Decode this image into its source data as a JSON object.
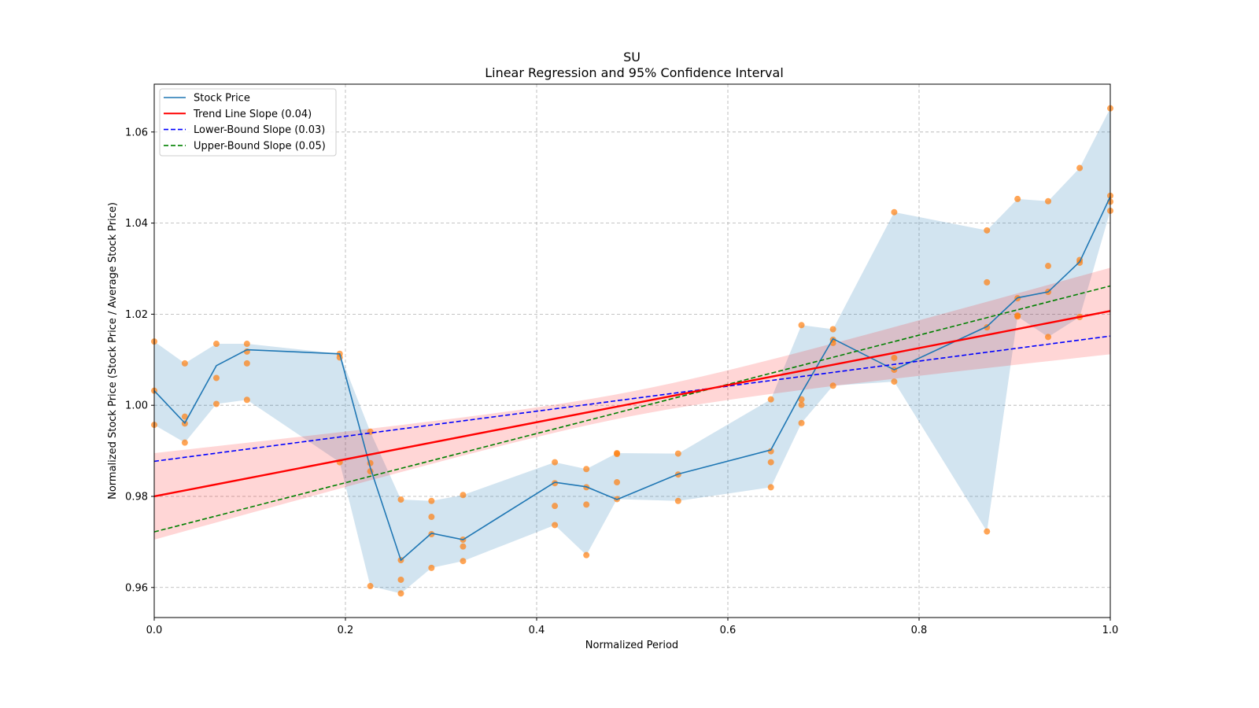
{
  "chart_data": {
    "type": "line",
    "title": "SU",
    "subtitle": "Linear Regression and 95% Confidence Interval",
    "xlabel": "Normalized Period",
    "ylabel": "Normalized Stock Price (Stock Price / Average Stock Price)",
    "xlim": [
      0.0,
      1.0
    ],
    "ylim": [
      0.9534,
      1.0705
    ],
    "xticks": [
      "0.0",
      "0.2",
      "0.4",
      "0.6",
      "0.8",
      "1.0"
    ],
    "yticks": [
      "0.96",
      "0.98",
      "1.00",
      "1.02",
      "1.04",
      "1.06"
    ],
    "grid": true,
    "legend_position": "top-left",
    "legend": [
      {
        "label": "Stock Price",
        "color": "#1f77b4",
        "style": "solid"
      },
      {
        "label": "Trend Line Slope (0.04)",
        "color": "#ff0000",
        "style": "solid"
      },
      {
        "label": "Lower-Bound Slope (0.03)",
        "color": "#0000ff",
        "style": "dashed"
      },
      {
        "label": "Upper-Bound Slope (0.05)",
        "color": "#008000",
        "style": "dashed"
      }
    ],
    "stock_price": {
      "x": [
        0,
        0.032,
        0.065,
        0.097,
        0.194,
        0.226,
        0.258,
        0.29,
        0.323,
        0.419,
        0.452,
        0.484,
        0.548,
        0.645,
        0.677,
        0.71,
        0.774,
        0.871,
        0.903,
        0.935,
        0.968,
        1.0
      ],
      "y": [
        1.0032,
        0.9961,
        1.0087,
        1.0122,
        1.0113,
        0.9863,
        0.966,
        0.9719,
        0.9705,
        0.9831,
        0.9821,
        0.9793,
        0.9849,
        0.9902,
        1.0027,
        1.0146,
        1.0078,
        1.0173,
        1.0236,
        1.0249,
        1.0315,
        1.0458
      ]
    },
    "scatter": [
      [
        0,
        [
          1.014,
          1.0032,
          0.9957
        ]
      ],
      [
        0.032,
        [
          1.0092,
          0.9975,
          0.996,
          0.9918
        ]
      ],
      [
        0.065,
        [
          1.0135,
          1.006,
          1.0003
        ]
      ],
      [
        0.097,
        [
          1.0135,
          1.0118,
          1.0092,
          1.0012
        ]
      ],
      [
        0.194,
        [
          1.0113,
          1.0105,
          0.9875
        ]
      ],
      [
        0.226,
        [
          0.9942,
          0.9873,
          0.9855,
          0.9603
        ]
      ],
      [
        0.258,
        [
          0.9793,
          0.966,
          0.9617,
          0.9587
        ]
      ],
      [
        0.29,
        [
          0.979,
          0.9755,
          0.9717,
          0.9643
        ]
      ],
      [
        0.323,
        [
          0.9803,
          0.9705,
          0.969,
          0.9658
        ]
      ],
      [
        0.419,
        [
          0.9875,
          0.9829,
          0.9779,
          0.9737
        ]
      ],
      [
        0.452,
        [
          0.986,
          0.982,
          0.9782,
          0.9671
        ]
      ],
      [
        0.484,
        [
          0.9895,
          0.9893,
          0.9831,
          0.9794
        ]
      ],
      [
        0.548,
        [
          0.9894,
          0.9848,
          0.979
        ]
      ],
      [
        0.645,
        [
          1.0013,
          0.9899,
          0.9875,
          0.982
        ]
      ],
      [
        0.677,
        [
          1.0176,
          1.0013,
          1.0001,
          0.9961
        ]
      ],
      [
        0.71,
        [
          1.0167,
          1.0144,
          1.0137,
          1.0043
        ]
      ],
      [
        0.774,
        [
          1.0424,
          1.0104,
          1.0078,
          1.0052
        ]
      ],
      [
        0.871,
        [
          1.0384,
          1.027,
          1.0171,
          0.9723
        ]
      ],
      [
        0.903,
        [
          1.0453,
          1.0235,
          1.0197,
          1.0195
        ]
      ],
      [
        0.935,
        [
          1.0448,
          1.0306,
          1.0249,
          1.015
        ]
      ],
      [
        0.968,
        [
          1.0521,
          1.0319,
          1.0313,
          1.0194
        ]
      ],
      [
        1.0,
        [
          1.0652,
          1.046,
          1.0447,
          1.0427
        ]
      ]
    ],
    "trend_line": {
      "y_at_0": 0.98,
      "y_at_1": 1.0207
    },
    "lower_bound_line": {
      "y_at_0": 0.9877,
      "y_at_1": 1.0152
    },
    "upper_bound_line": {
      "y_at_0": 0.9722,
      "y_at_1": 1.0262
    },
    "regression_ci": {
      "halfwidth_edge": 0.0095,
      "halfwidth_center": 0.0027
    },
    "colors": {
      "price": "#1f77b4",
      "band": "#1f77b4",
      "scatter": "#ff7f0e",
      "trend": "#ff0000",
      "ci": "#ff0000",
      "lower": "#0000ff",
      "upper": "#008000"
    }
  }
}
